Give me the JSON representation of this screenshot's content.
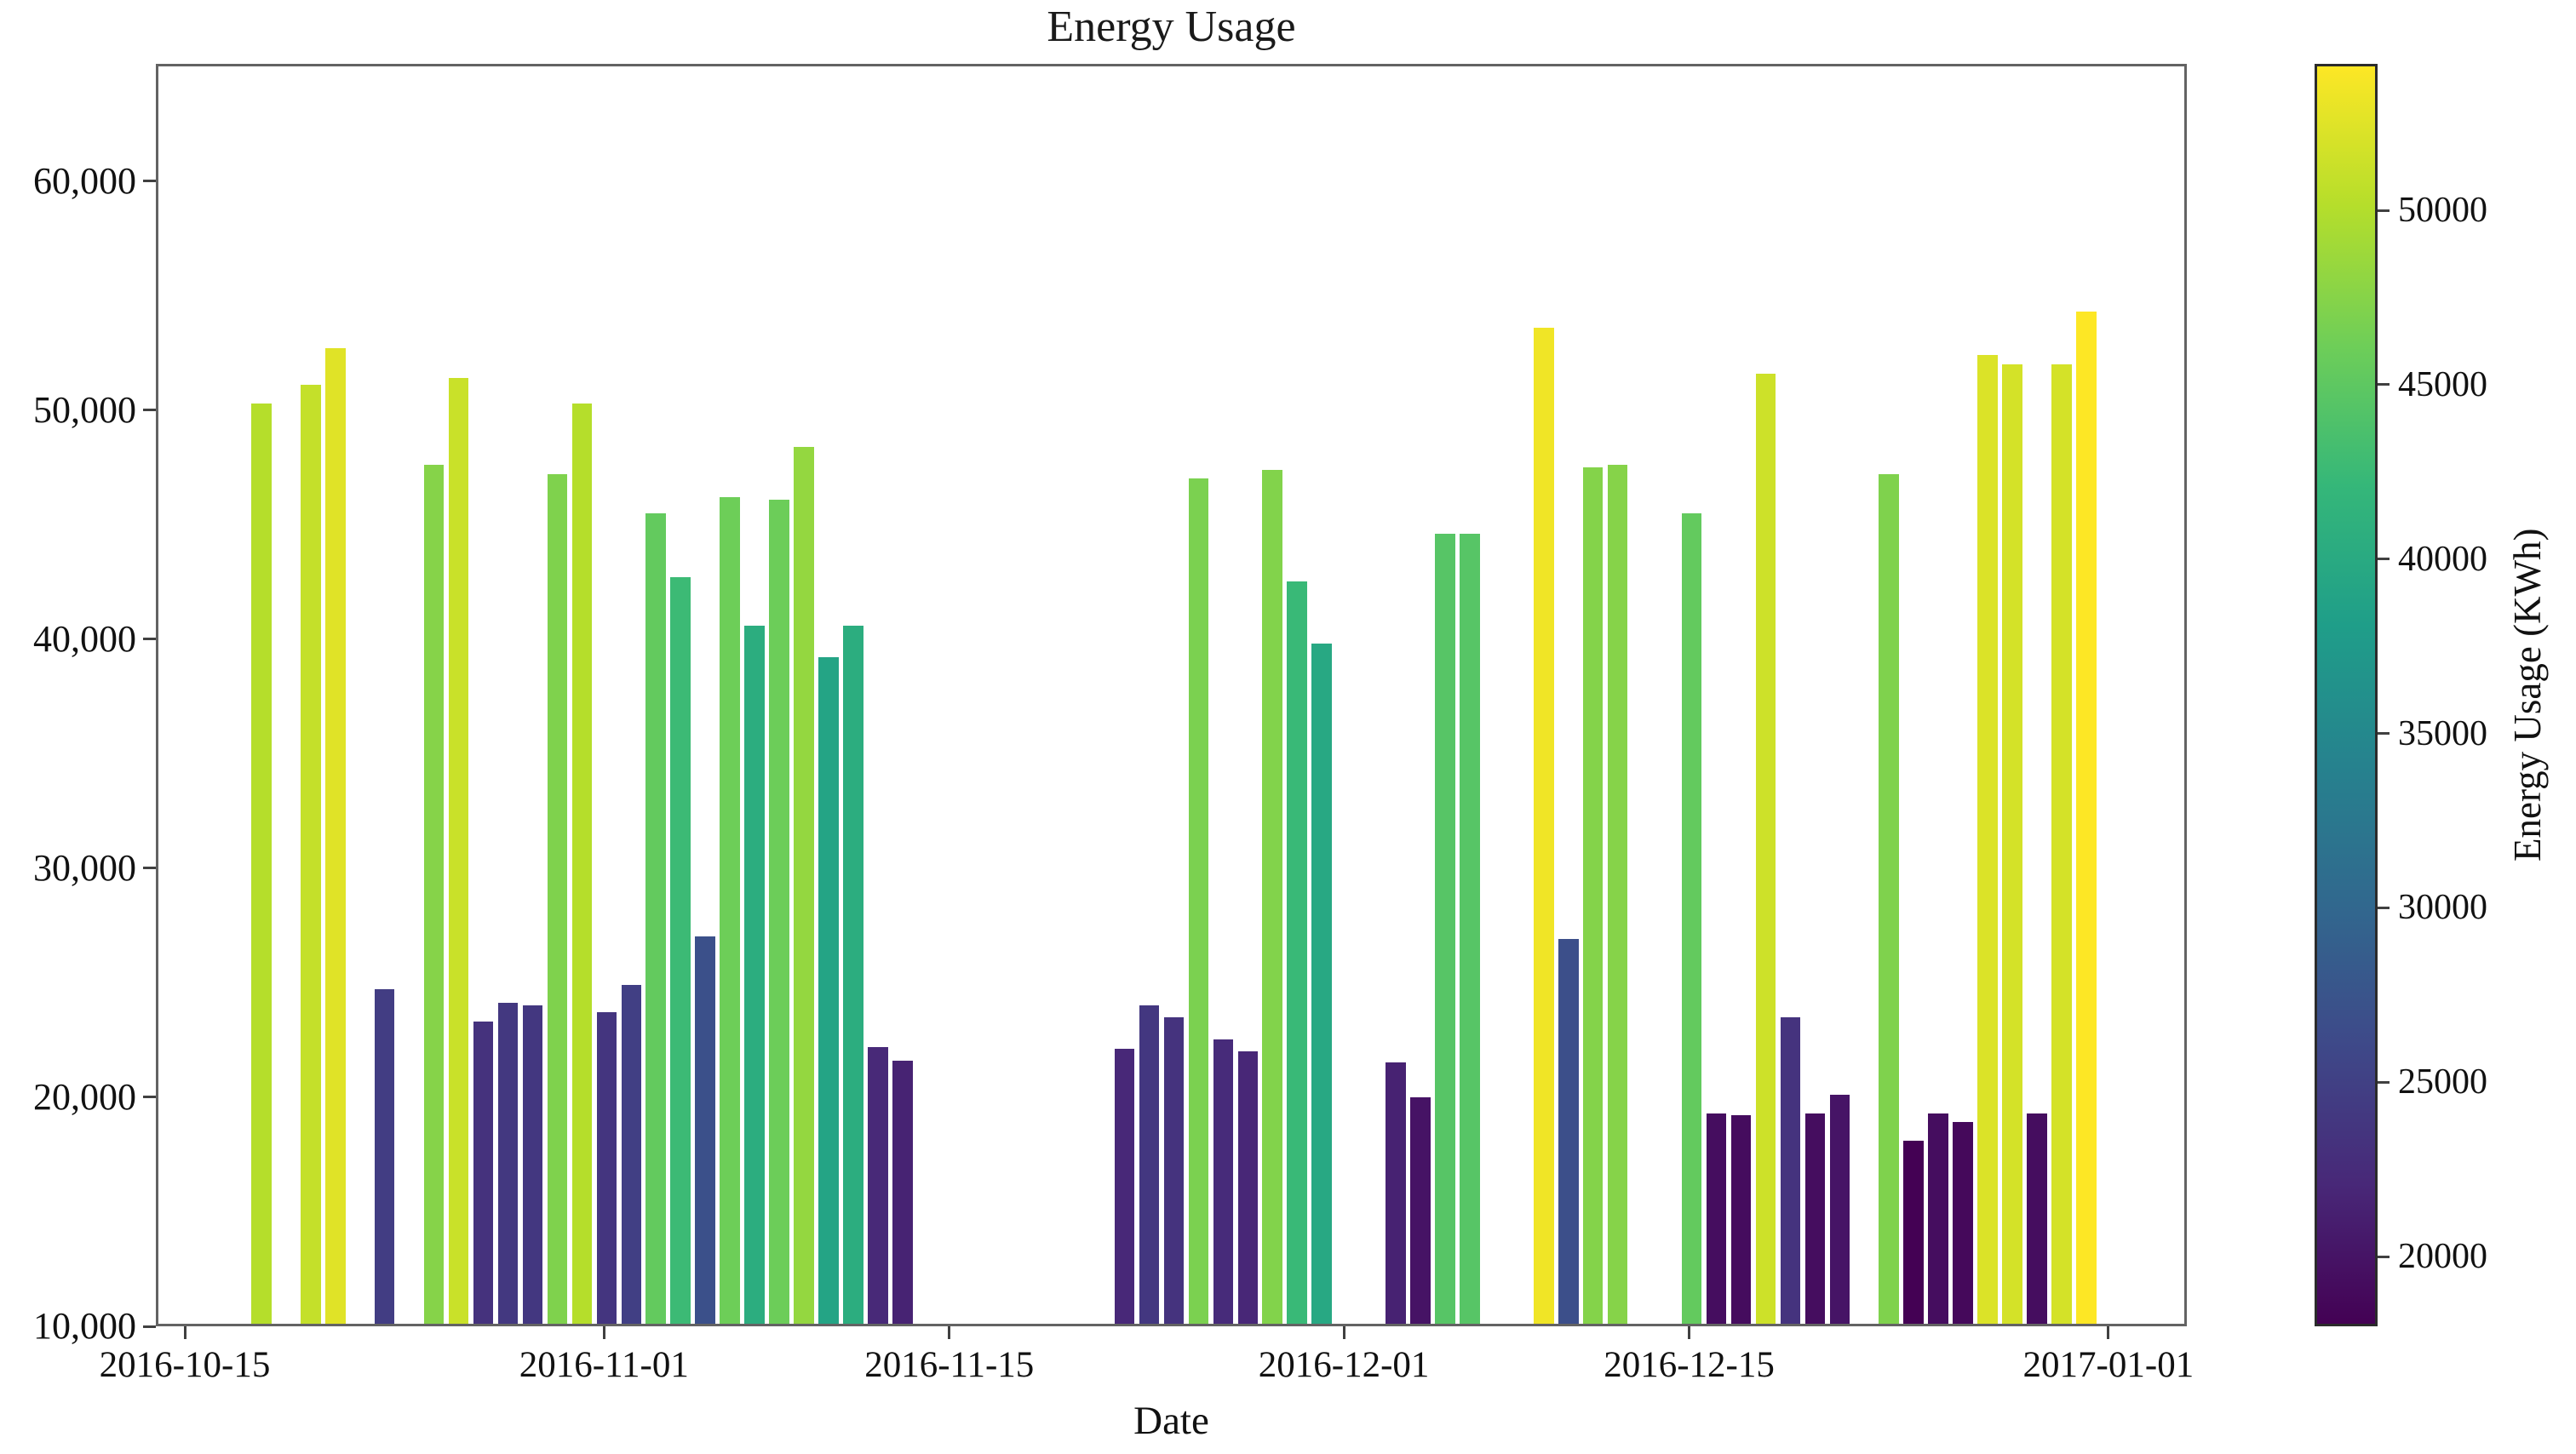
{
  "title": "Energy Usage",
  "x_axis": {
    "label": "Date",
    "tick_labels": [
      "2016-10-15",
      "2016-11-01",
      "2016-11-15",
      "2016-12-01",
      "2016-12-15",
      "2017-01-01"
    ]
  },
  "y_axis": {
    "tick_labels": [
      "60,000",
      "50,000",
      "40,000",
      "30,000",
      "20,000",
      "10,000"
    ],
    "tick_values": [
      60000,
      50000,
      40000,
      30000,
      20000,
      10000
    ]
  },
  "colorbar": {
    "label": "Energy Usage (KWh)",
    "tick_labels": [
      "50000",
      "45000",
      "40000",
      "35000",
      "30000",
      "25000",
      "20000"
    ],
    "tick_values": [
      50000,
      45000,
      40000,
      35000,
      30000,
      25000,
      20000
    ],
    "vmin": 18000,
    "vmax": 54200,
    "colormap": "viridis",
    "viridis_anchor_colors": [
      "#440154",
      "#482878",
      "#3e4989",
      "#31688e",
      "#26828e",
      "#1f9e89",
      "#35b779",
      "#6ece58",
      "#b5de2b",
      "#fde725"
    ]
  },
  "chart_data": {
    "type": "bar",
    "title": "Energy Usage",
    "xlabel": "Date",
    "ylabel": "Energy Usage (KWh)",
    "unit": "KWh",
    "ylim": [
      10000,
      65130
    ],
    "x_start": "2016-10-15",
    "x_end": "2017-01-01",
    "legend": "none",
    "grid": false,
    "color_by": "value",
    "colormap": "viridis",
    "color_range": [
      18000,
      54200
    ],
    "x": [
      "2016-10-18",
      "2016-10-20",
      "2016-10-21",
      "2016-10-23",
      "2016-10-25",
      "2016-10-26",
      "2016-10-27",
      "2016-10-28",
      "2016-10-29",
      "2016-10-30",
      "2016-10-31",
      "2016-11-01",
      "2016-11-02",
      "2016-11-03",
      "2016-11-04",
      "2016-11-05",
      "2016-11-06",
      "2016-11-07",
      "2016-11-08",
      "2016-11-09",
      "2016-11-10",
      "2016-11-11",
      "2016-11-12",
      "2016-11-13",
      "2016-11-22",
      "2016-11-23",
      "2016-11-24",
      "2016-11-25",
      "2016-11-26",
      "2016-11-27",
      "2016-11-28",
      "2016-11-29",
      "2016-11-30",
      "2016-12-03",
      "2016-12-04",
      "2016-12-05",
      "2016-12-06",
      "2016-12-09",
      "2016-12-10",
      "2016-12-11",
      "2016-12-12",
      "2016-12-15",
      "2016-12-16",
      "2016-12-17",
      "2016-12-18",
      "2016-12-19",
      "2016-12-20",
      "2016-12-21",
      "2016-12-23",
      "2016-12-24",
      "2016-12-25",
      "2016-12-26",
      "2016-12-27",
      "2016-12-28",
      "2016-12-29",
      "2016-12-30",
      "2016-12-31"
    ],
    "values": [
      50200,
      51000,
      52600,
      24600,
      47500,
      51300,
      23200,
      24000,
      23900,
      47100,
      50200,
      23600,
      24800,
      45400,
      42600,
      26900,
      46100,
      40500,
      46000,
      48300,
      39100,
      40500,
      22100,
      21500,
      22000,
      23900,
      23400,
      46900,
      22400,
      21900,
      47300,
      42400,
      39700,
      21400,
      19900,
      44500,
      44500,
      53500,
      26800,
      47400,
      47500,
      45400,
      19200,
      19100,
      51500,
      23400,
      19200,
      20000,
      47100,
      18000,
      19200,
      18800,
      52300,
      51900,
      19200,
      51900,
      54200
    ]
  }
}
